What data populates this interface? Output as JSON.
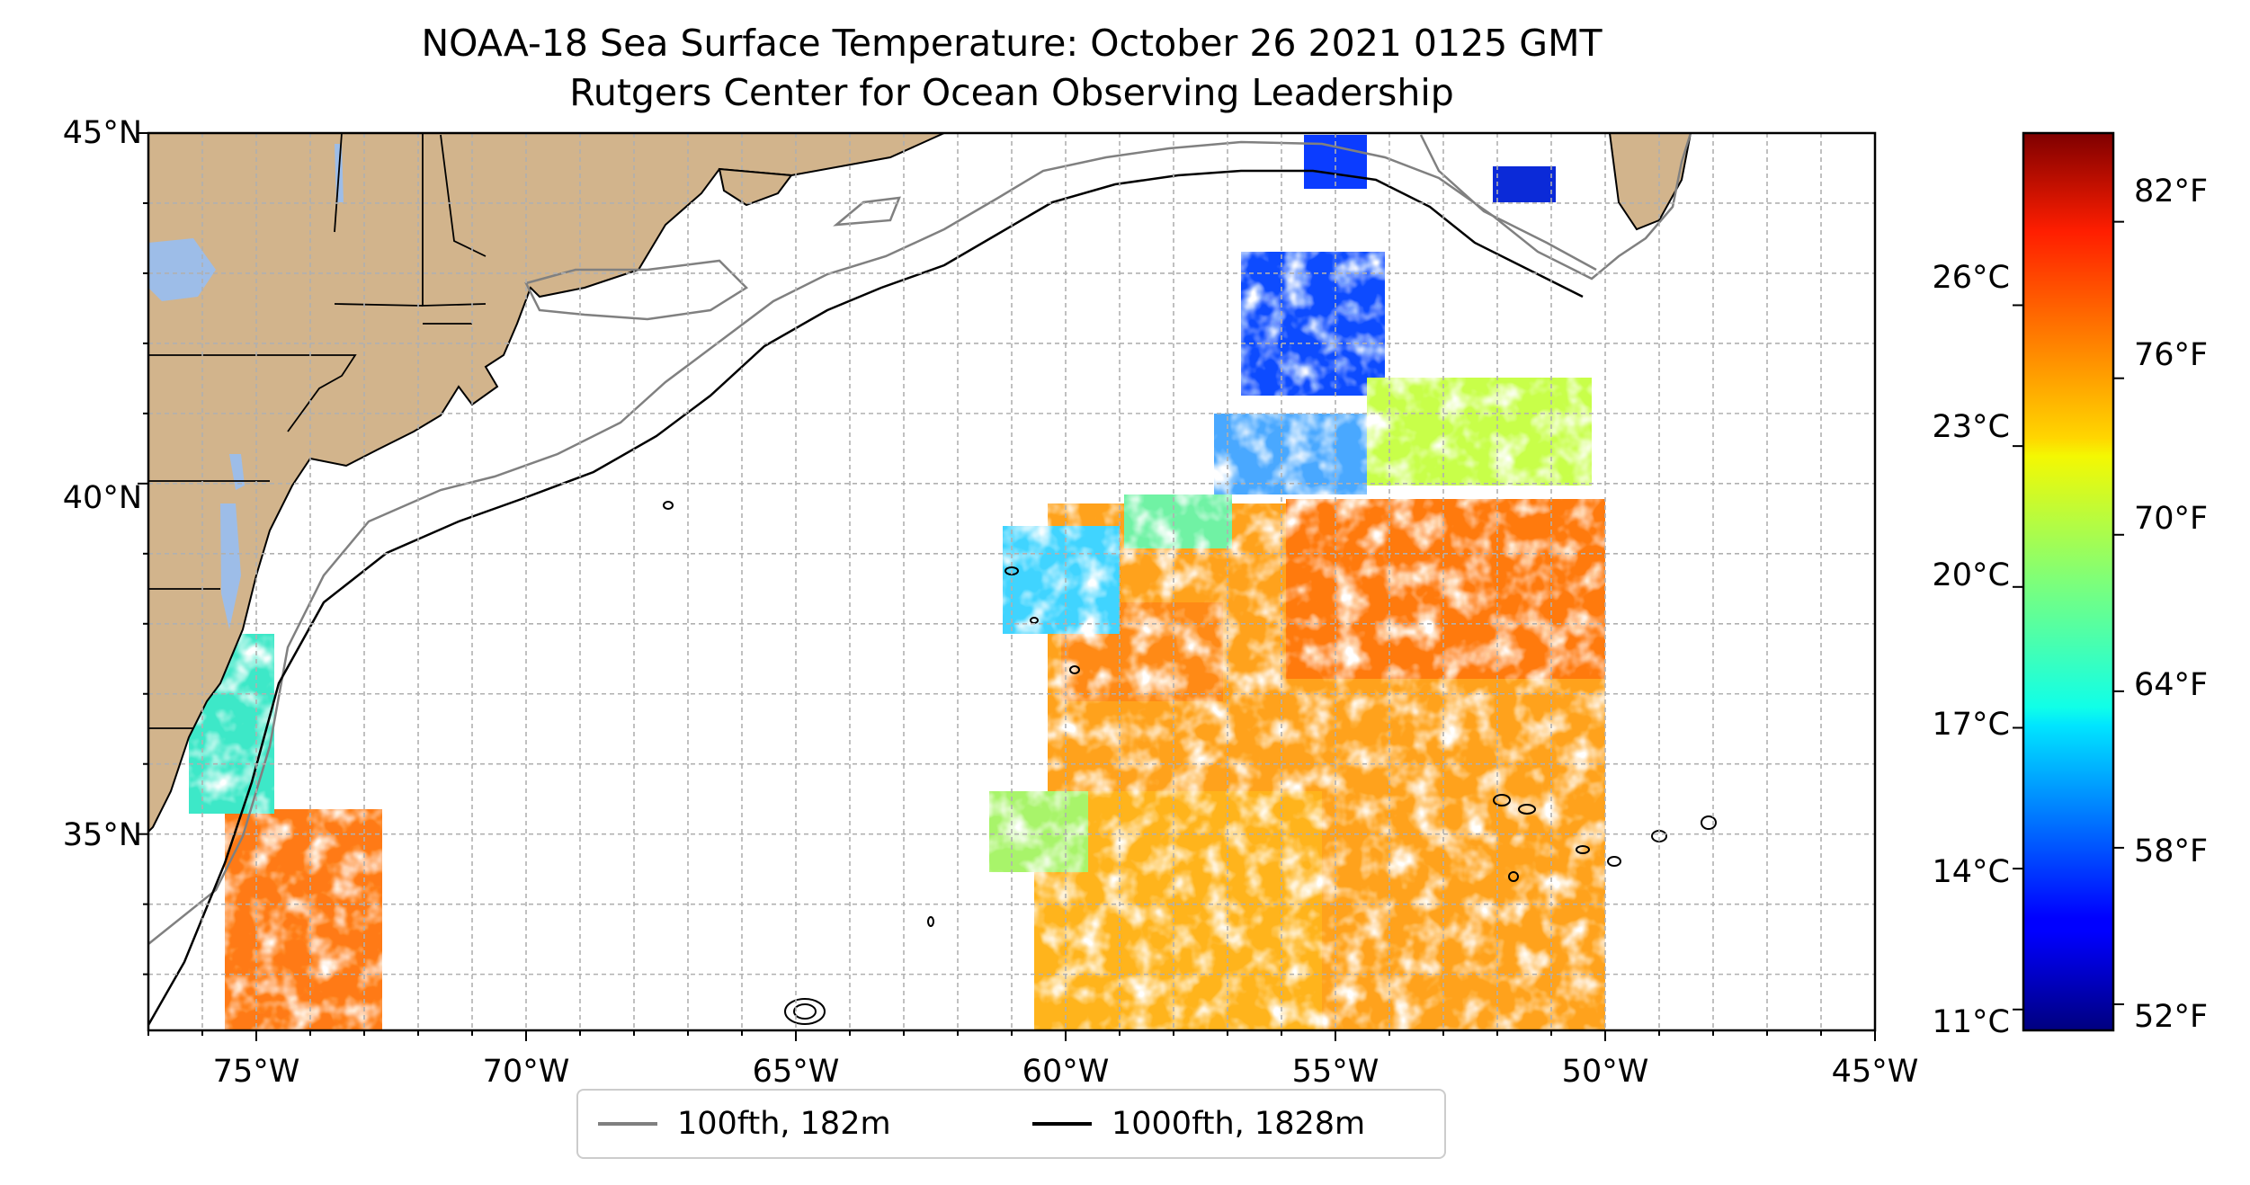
{
  "title": {
    "line1": "NOAA-18 Sea Surface Temperature: October 26 2021 0125 GMT",
    "line2": "Rutgers Center for Ocean Observing Leadership"
  },
  "map": {
    "extent": {
      "lon": [
        -77,
        -45
      ],
      "lat": [
        32.2,
        45
      ]
    },
    "land_color": "#d2b48c",
    "water_body_color": "#9dbde8",
    "lat_ticks": [
      {
        "value": 45,
        "label": "45°N"
      },
      {
        "value": 40,
        "label": "40°N"
      },
      {
        "value": 35,
        "label": "35°N"
      }
    ],
    "lon_ticks": [
      {
        "value": -75,
        "label": "75°W"
      },
      {
        "value": -70,
        "label": "70°W"
      },
      {
        "value": -65,
        "label": "65°W"
      },
      {
        "value": -60,
        "label": "60°W"
      },
      {
        "value": -55,
        "label": "55°W"
      },
      {
        "value": -50,
        "label": "50°W"
      },
      {
        "value": -45,
        "label": "45°W"
      }
    ]
  },
  "colorbar": {
    "colormap": "jet",
    "range_f": [
      51,
      85.4
    ],
    "celsius_ticks": [
      {
        "value": 11,
        "label": "11°C"
      },
      {
        "value": 14,
        "label": "14°C"
      },
      {
        "value": 17,
        "label": "17°C"
      },
      {
        "value": 20,
        "label": "20°C"
      },
      {
        "value": 23,
        "label": "23°C"
      },
      {
        "value": 26,
        "label": "26°C"
      }
    ],
    "fahrenheit_ticks": [
      {
        "value": 52,
        "label": "52°F"
      },
      {
        "value": 58,
        "label": "58°F"
      },
      {
        "value": 64,
        "label": "64°F"
      },
      {
        "value": 70,
        "label": "70°F"
      },
      {
        "value": 76,
        "label": "76°F"
      },
      {
        "value": 82,
        "label": "82°F"
      }
    ]
  },
  "legend": {
    "items": [
      {
        "label": "100fth, 182m",
        "color": "#808080"
      },
      {
        "label": "1000fth, 1828m",
        "color": "#000000"
      }
    ]
  }
}
